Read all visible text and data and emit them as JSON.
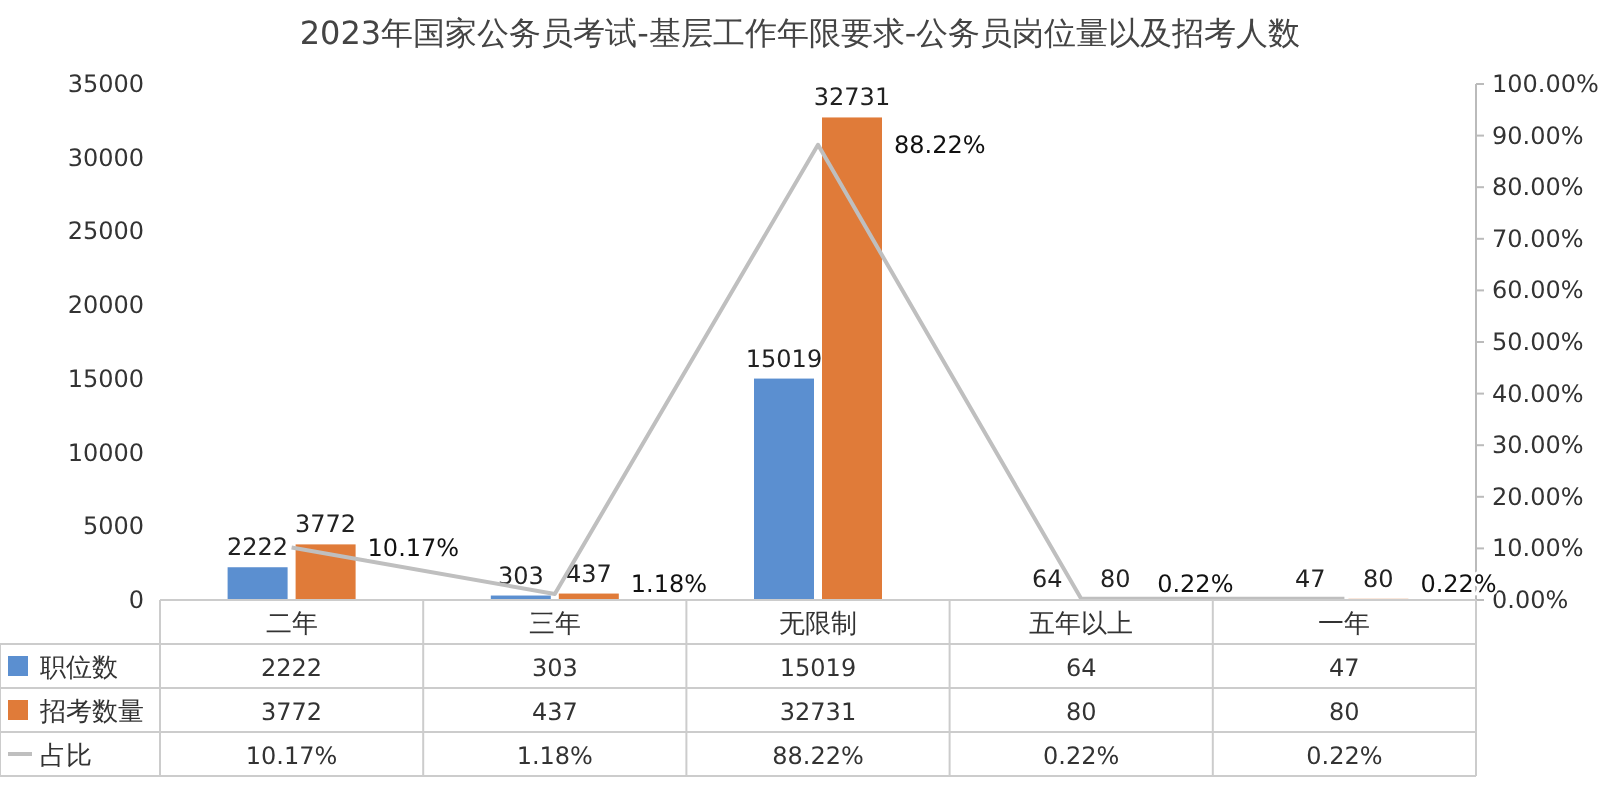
{
  "chart_data": {
    "type": "bar",
    "title": "2023年国家公务员考试-基层工作年限要求-公务员岗位量以及招考人数",
    "categories": [
      "二年",
      "三年",
      "无限制",
      "五年以上",
      "一年"
    ],
    "series": [
      {
        "name": "职位数",
        "color": "#5b8fd0",
        "values": [
          2222,
          303,
          15019,
          64,
          47
        ],
        "value_labels": [
          "2222",
          "303",
          "15019",
          "64",
          "47"
        ]
      },
      {
        "name": "招考数量",
        "color": "#e07b39",
        "values": [
          3772,
          437,
          32731,
          80,
          80
        ],
        "value_labels": [
          "3772",
          "437",
          "32731",
          "80",
          "80"
        ]
      },
      {
        "name": "占比",
        "type": "line",
        "axis": "y2",
        "color": "#bfbfbf",
        "values": [
          10.17,
          1.18,
          88.22,
          0.22,
          0.22
        ],
        "value_labels": [
          "10.17%",
          "1.18%",
          "88.22%",
          "0.22%",
          "0.22%"
        ]
      }
    ],
    "ylim": [
      0,
      35000
    ],
    "yticks": [
      0,
      5000,
      10000,
      15000,
      20000,
      25000,
      30000,
      35000
    ],
    "y2lim": [
      0,
      100
    ],
    "y2ticks": [
      {
        "value": 0,
        "label": "0.00%"
      },
      {
        "value": 10,
        "label": "10.00%"
      },
      {
        "value": 20,
        "label": "20.00%"
      },
      {
        "value": 30,
        "label": "30.00%"
      },
      {
        "value": 40,
        "label": "40.00%"
      },
      {
        "value": 50,
        "label": "50.00%"
      },
      {
        "value": 60,
        "label": "60.00%"
      },
      {
        "value": 70,
        "label": "70.00%"
      },
      {
        "value": 80,
        "label": "80.00%"
      },
      {
        "value": 90,
        "label": "90.00%"
      },
      {
        "value": 100,
        "label": "100.00%"
      }
    ],
    "data_labels": true,
    "legend": "bottom"
  }
}
